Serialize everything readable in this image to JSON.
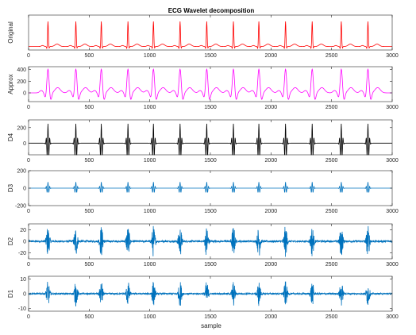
{
  "chart_data": {
    "type": "line",
    "title": "ECG Wavelet decomposition",
    "xlabel": "sample",
    "xlim": [
      0,
      3000
    ],
    "x_ticks": [
      0,
      500,
      1000,
      1500,
      2000,
      2500,
      3000
    ],
    "beat_positions": [
      160,
      390,
      600,
      820,
      1030,
      1250,
      1470,
      1690,
      1900,
      2120,
      2340,
      2580,
      2800
    ],
    "grid": false,
    "panels": [
      {
        "name": "original",
        "ylabel": "Original",
        "ylim": [
          0,
          1
        ],
        "y_ticks": [],
        "color": "#ff0000",
        "signal": "ecg",
        "peak": 0.72,
        "baseline": 0.1
      },
      {
        "name": "approx",
        "ylabel": "Approx",
        "ylim": [
          -150,
          450
        ],
        "y_ticks": [
          0,
          200,
          400
        ],
        "color": "#ff00ff",
        "signal": "approx",
        "peak": 420,
        "trough": -130
      },
      {
        "name": "d4",
        "ylabel": "D4",
        "ylim": [
          -150,
          300
        ],
        "y_ticks": [
          0,
          200
        ],
        "color": "#000000",
        "signal": "wavelet",
        "peak": 250
      },
      {
        "name": "d3",
        "ylabel": "D3",
        "ylim": [
          -200,
          200
        ],
        "y_ticks": [
          -200,
          0,
          200
        ],
        "color": "#0072bd",
        "signal": "wavelet",
        "peak": 70
      },
      {
        "name": "d2",
        "ylabel": "D2",
        "ylim": [
          -30,
          30
        ],
        "y_ticks": [
          -20,
          0,
          20
        ],
        "color": "#0072bd",
        "signal": "burst",
        "peak": 22
      },
      {
        "name": "d1",
        "ylabel": "D1",
        "ylim": [
          -12,
          12
        ],
        "y_ticks": [
          -10,
          0,
          10
        ],
        "color": "#0072bd",
        "signal": "burst",
        "peak": 7
      }
    ]
  }
}
